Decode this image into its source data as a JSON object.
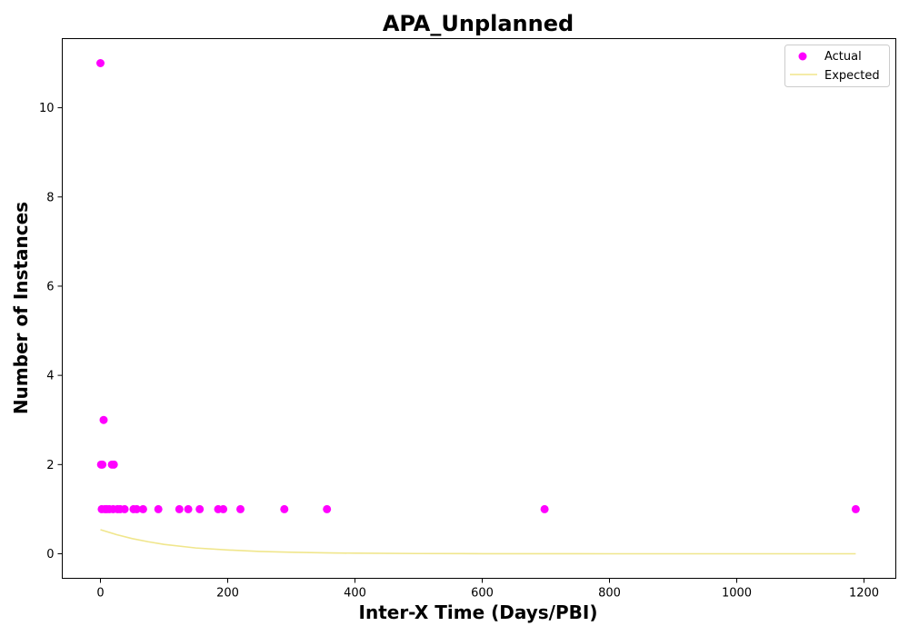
{
  "chart_data": {
    "type": "scatter",
    "title": "APA_Unplanned",
    "xlabel": "Inter-X Time (Days/PBI)",
    "ylabel": "Number of Instances",
    "xlim": [
      -60,
      1250
    ],
    "ylim": [
      -0.55,
      11.55
    ],
    "xticks": [
      0,
      200,
      400,
      600,
      800,
      1000,
      1200
    ],
    "yticks": [
      0,
      2,
      4,
      6,
      8,
      10
    ],
    "grid": false,
    "legend_position": "top-right",
    "series": [
      {
        "name": "Actual",
        "kind": "scatter",
        "color": "#ff00ff",
        "points": [
          [
            0,
            11
          ],
          [
            1,
            2
          ],
          [
            3,
            2
          ],
          [
            5,
            3
          ],
          [
            2,
            1
          ],
          [
            7,
            1
          ],
          [
            10,
            1
          ],
          [
            14,
            1
          ],
          [
            18,
            2
          ],
          [
            21,
            2
          ],
          [
            20,
            1
          ],
          [
            27,
            1
          ],
          [
            31,
            1
          ],
          [
            38,
            1
          ],
          [
            52,
            1
          ],
          [
            57,
            1
          ],
          [
            67,
            1
          ],
          [
            91,
            1
          ],
          [
            124,
            1
          ],
          [
            138,
            1
          ],
          [
            156,
            1
          ],
          [
            185,
            1
          ],
          [
            193,
            1
          ],
          [
            220,
            1
          ],
          [
            289,
            1
          ],
          [
            356,
            1
          ],
          [
            698,
            1
          ],
          [
            1187,
            1
          ]
        ]
      },
      {
        "name": "Expected",
        "kind": "line",
        "color": "#f0e68c",
        "points": [
          [
            0,
            0.54
          ],
          [
            25,
            0.43
          ],
          [
            50,
            0.34
          ],
          [
            75,
            0.27
          ],
          [
            100,
            0.21
          ],
          [
            150,
            0.13
          ],
          [
            200,
            0.085
          ],
          [
            250,
            0.053
          ],
          [
            300,
            0.034
          ],
          [
            350,
            0.021
          ],
          [
            400,
            0.013
          ],
          [
            500,
            0.005
          ],
          [
            600,
            0.002
          ],
          [
            700,
            0.001
          ],
          [
            800,
            0.0003
          ],
          [
            1000,
            0.0
          ],
          [
            1187,
            0.0
          ]
        ]
      }
    ]
  }
}
